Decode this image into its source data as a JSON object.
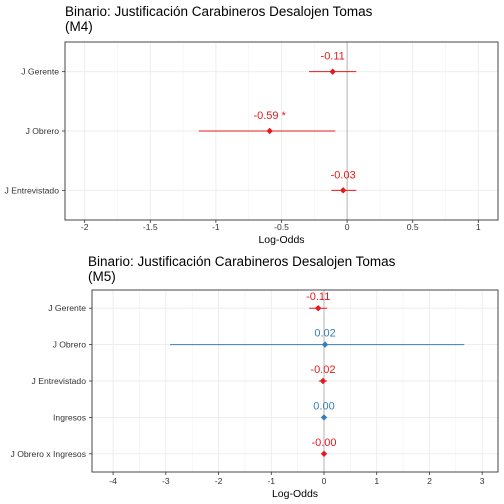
{
  "chart_data": [
    {
      "type": "scatter",
      "subtype": "coefficient-plot",
      "title_lines": [
        "Binario: Justificación Carabineros Desalojen Tomas",
        "(M4)"
      ],
      "xlabel": "Log-Odds",
      "ylabel": "",
      "xlim": [
        -2.15,
        1.15
      ],
      "xticks": [
        -2,
        -1.5,
        -1,
        -0.5,
        0,
        0.5,
        1
      ],
      "xtick_labels": [
        "-2",
        "-1.5",
        "-1",
        "-0.5",
        "0",
        "0.5",
        "1"
      ],
      "grid": true,
      "reference_line": 0,
      "points": [
        {
          "term": "J Gerente",
          "estimate": -0.11,
          "lower": -0.29,
          "upper": 0.07,
          "label": "-0.11",
          "color": "#e41a1c"
        },
        {
          "term": "J Obrero",
          "estimate": -0.59,
          "lower": -1.13,
          "upper": -0.09,
          "label": "-0.59 *",
          "color": "#e41a1c"
        },
        {
          "term": "J Entrevistado",
          "estimate": -0.03,
          "lower": -0.12,
          "upper": 0.07,
          "label": "-0.03",
          "color": "#e41a1c"
        }
      ]
    },
    {
      "type": "scatter",
      "subtype": "coefficient-plot",
      "title_lines": [
        "Binario: Justificación Carabineros Desalojen Tomas",
        "(M5)"
      ],
      "xlabel": "Log-Odds",
      "ylabel": "",
      "xlim": [
        -4.4,
        3.3
      ],
      "xticks": [
        -4,
        -3,
        -2,
        -1,
        0,
        1,
        2,
        3
      ],
      "xtick_labels": [
        "-4",
        "-3",
        "-2",
        "-1",
        "0",
        "1",
        "2",
        "3"
      ],
      "grid": true,
      "reference_line": 0,
      "points": [
        {
          "term": "J Gerente",
          "estimate": -0.11,
          "lower": -0.28,
          "upper": 0.06,
          "label": "-0.11",
          "color": "#e41a1c"
        },
        {
          "term": "J Obrero",
          "estimate": 0.02,
          "lower": -2.92,
          "upper": 2.66,
          "label": "0.02",
          "color": "#377eb8"
        },
        {
          "term": "J Entrevistado",
          "estimate": -0.02,
          "lower": -0.1,
          "upper": 0.06,
          "label": "-0.02",
          "color": "#e41a1c"
        },
        {
          "term": "Ingresos",
          "estimate": 0.0,
          "lower": -0.01,
          "upper": 0.01,
          "label": "0.00",
          "color": "#377eb8"
        },
        {
          "term": "J Obrero x Ingresos",
          "estimate": -0.0,
          "lower": -0.01,
          "upper": 0.01,
          "label": "-0.00",
          "color": "#e41a1c"
        }
      ]
    }
  ]
}
